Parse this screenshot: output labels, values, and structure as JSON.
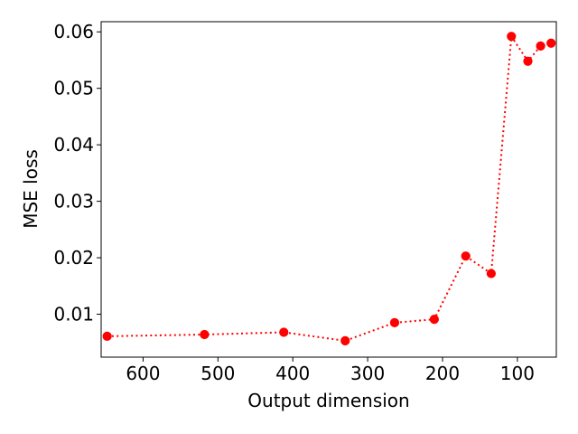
{
  "chart_data": {
    "type": "line",
    "title": "",
    "xlabel": "Output dimension",
    "ylabel": "MSE loss",
    "x_inverted": true,
    "xlim": [
      656,
      48
    ],
    "ylim": [
      0.0024,
      0.0618
    ],
    "xticks": [
      600,
      500,
      400,
      300,
      200,
      100
    ],
    "xtick_labels": [
      "600",
      "500",
      "400",
      "300",
      "200",
      "100"
    ],
    "yticks": [
      0.01,
      0.02,
      0.03,
      0.04,
      0.05,
      0.06
    ],
    "ytick_labels": [
      "0.01",
      "0.02",
      "0.03",
      "0.04",
      "0.05",
      "0.06"
    ],
    "grid": false,
    "series": [
      {
        "color": "#ff0000",
        "line_style": "dotted",
        "marker": "circle",
        "points": [
          {
            "x": 648,
            "y": 0.0061
          },
          {
            "x": 518,
            "y": 0.0064
          },
          {
            "x": 412,
            "y": 0.0068
          },
          {
            "x": 330,
            "y": 0.0053
          },
          {
            "x": 264,
            "y": 0.0085
          },
          {
            "x": 211,
            "y": 0.0091
          },
          {
            "x": 169,
            "y": 0.0203
          },
          {
            "x": 135,
            "y": 0.0172
          },
          {
            "x": 108,
            "y": 0.0592
          },
          {
            "x": 86,
            "y": 0.0548
          },
          {
            "x": 69,
            "y": 0.0575
          },
          {
            "x": 55,
            "y": 0.058
          }
        ]
      }
    ]
  }
}
